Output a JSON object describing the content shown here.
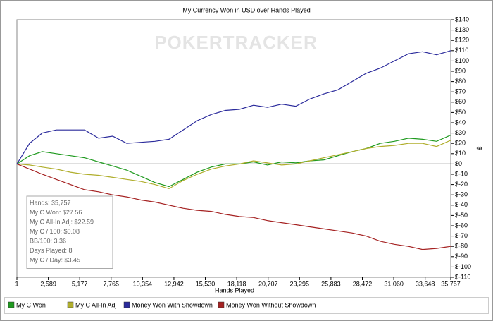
{
  "chart_data": {
    "type": "line",
    "title": "My Currency Won in USD over Hands Played",
    "watermark": "POKERTRACKER",
    "xlabel": "Hands Played",
    "ylabel": "$",
    "xlim": [
      1,
      35757
    ],
    "ylim": [
      -110,
      140
    ],
    "xticks": [
      1,
      {
        "value": 2589,
        "label": "2,589"
      },
      {
        "value": 5177,
        "label": "5,177"
      },
      {
        "value": 7765,
        "label": "7,765"
      },
      {
        "value": 10354,
        "label": "10,354"
      },
      {
        "value": 12942,
        "label": "12,942"
      },
      {
        "value": 15530,
        "label": "15,530"
      },
      {
        "value": 18118,
        "label": "18,118"
      },
      {
        "value": 20707,
        "label": "20,707"
      },
      {
        "value": 23295,
        "label": "23,295"
      },
      {
        "value": 25883,
        "label": "25,883"
      },
      {
        "value": 28472,
        "label": "28,472"
      },
      {
        "value": 31060,
        "label": "31,060"
      },
      {
        "value": 33648,
        "label": "33,648"
      },
      {
        "value": 35757,
        "label": "35,757"
      }
    ],
    "yticks": [
      {
        "value": 140,
        "label": "$140"
      },
      {
        "value": 130,
        "label": "$130"
      },
      {
        "value": 120,
        "label": "$120"
      },
      {
        "value": 110,
        "label": "$110"
      },
      {
        "value": 100,
        "label": "$100"
      },
      {
        "value": 90,
        "label": "$90"
      },
      {
        "value": 80,
        "label": "$80"
      },
      {
        "value": 70,
        "label": "$70"
      },
      {
        "value": 60,
        "label": "$60"
      },
      {
        "value": 50,
        "label": "$50"
      },
      {
        "value": 40,
        "label": "$40"
      },
      {
        "value": 30,
        "label": "$30"
      },
      {
        "value": 20,
        "label": "$20"
      },
      {
        "value": 10,
        "label": "$10"
      },
      {
        "value": 0,
        "label": "$0"
      },
      {
        "value": -10,
        "label": "$-10"
      },
      {
        "value": -20,
        "label": "$-20"
      },
      {
        "value": -30,
        "label": "$-30"
      },
      {
        "value": -40,
        "label": "$-40"
      },
      {
        "value": -50,
        "label": "$-50"
      },
      {
        "value": -60,
        "label": "$-60"
      },
      {
        "value": -70,
        "label": "$-70"
      },
      {
        "value": -80,
        "label": "$-80"
      },
      {
        "value": -90,
        "label": "$-90"
      },
      {
        "value": -100,
        "label": "$-100"
      },
      {
        "value": -110,
        "label": "$-110"
      }
    ],
    "x": [
      1,
      1045,
      2090,
      3250,
      4411,
      5572,
      6733,
      7893,
      9054,
      10215,
      11375,
      12536,
      13697,
      14858,
      16019,
      17180,
      18340,
      19501,
      20662,
      21823,
      22983,
      24144,
      25305,
      26466,
      27627,
      28787,
      29948,
      31109,
      32270,
      33431,
      34591,
      35757
    ],
    "series": [
      {
        "name": "My C Won",
        "color": "#1f9a1f",
        "values": [
          0,
          8,
          12,
          10,
          8,
          6,
          2,
          -2,
          -6,
          -12,
          -18,
          -22,
          -15,
          -8,
          -3,
          0,
          0,
          2,
          -1,
          2,
          1,
          3,
          4,
          8,
          12,
          15,
          20,
          22,
          25,
          24,
          22,
          28
        ]
      },
      {
        "name": "My C All-In Adj",
        "color": "#b0ae2c",
        "values": [
          0,
          -1,
          -3,
          -5,
          -8,
          -10,
          -11,
          -13,
          -15,
          -17,
          -20,
          -24,
          -16,
          -10,
          -5,
          -2,
          0,
          3,
          1,
          -1,
          0,
          3,
          6,
          9,
          12,
          15,
          17,
          18,
          20,
          20,
          17,
          23
        ]
      },
      {
        "name": "Money Won With Showdown",
        "color": "#2b2b9c",
        "values": [
          0,
          20,
          30,
          33,
          33,
          33,
          25,
          27,
          20,
          21,
          22,
          24,
          33,
          42,
          48,
          52,
          53,
          57,
          55,
          58,
          56,
          63,
          68,
          72,
          80,
          88,
          93,
          100,
          107,
          109,
          106,
          110
        ]
      },
      {
        "name": "Money Won Without Showdown",
        "color": "#a52222",
        "values": [
          0,
          -5,
          -10,
          -15,
          -20,
          -25,
          -27,
          -30,
          -32,
          -35,
          -37,
          -40,
          -43,
          -45,
          -46,
          -49,
          -51,
          -52,
          -55,
          -57,
          -59,
          -61,
          -63,
          -65,
          -67,
          -70,
          -75,
          -78,
          -80,
          -83,
          -82,
          -80
        ]
      }
    ],
    "info_box": [
      "Hands: 35,757",
      "My C Won: $27.56",
      "My C All-In Adj: $22.59",
      "My C / 100: $0.08",
      "BB/100: 3.36",
      "Days Played: 8",
      "My C / Day: $3.45"
    ]
  }
}
